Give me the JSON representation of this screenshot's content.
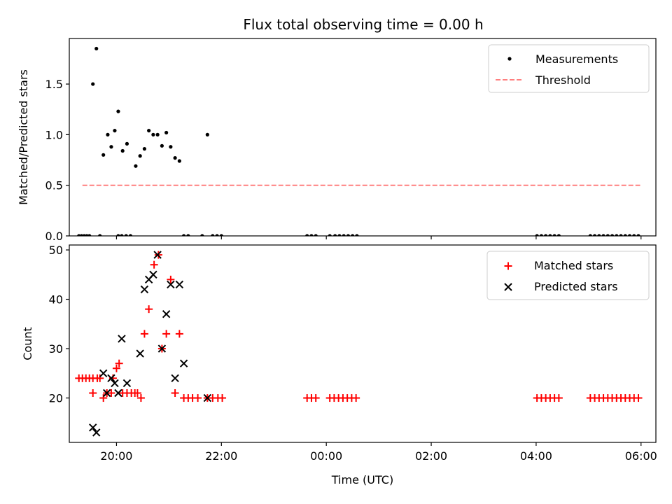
{
  "title": "Flux total observing time = 0.00 h",
  "colors": {
    "measurement": "#000000",
    "threshold": "#ff7f7f",
    "matched": "#ff0000",
    "predicted": "#000000"
  },
  "chart_data": [
    {
      "type": "scatter",
      "ylabel": "Matched/Predicted stars",
      "xlabel": "",
      "ylim": [
        0,
        1.95
      ],
      "yticks": [
        0.0,
        0.5,
        1.0,
        1.5
      ],
      "ytick_labels": [
        "0.0",
        "0.5",
        "1.0",
        "1.5"
      ],
      "xlim": [
        "19:06",
        "06:17"
      ],
      "xticks": [
        "20:00",
        "22:00",
        "00:00",
        "02:00",
        "04:00",
        "06:00"
      ],
      "legend": {
        "position": "top-right",
        "entries": [
          "Measurements",
          "Threshold"
        ]
      },
      "series": [
        {
          "name": "Measurements",
          "marker": "dot",
          "points": [
            [
              "19:17",
              0
            ],
            [
              "19:20",
              0
            ],
            [
              "19:23",
              0
            ],
            [
              "19:26",
              0
            ],
            [
              "19:29",
              0
            ],
            [
              "19:33",
              1.5
            ],
            [
              "19:37",
              1.85
            ],
            [
              "19:41",
              0
            ],
            [
              "19:45",
              0.8
            ],
            [
              "19:50",
              1.0
            ],
            [
              "19:54",
              0.88
            ],
            [
              "19:58",
              1.04
            ],
            [
              "20:02",
              1.23
            ],
            [
              "20:07",
              0.84
            ],
            [
              "20:12",
              0.91
            ],
            [
              "20:02",
              0
            ],
            [
              "20:06",
              0
            ],
            [
              "20:11",
              0
            ],
            [
              "20:16",
              0
            ],
            [
              "20:22",
              0.69
            ],
            [
              "20:27",
              0.79
            ],
            [
              "20:32",
              0.86
            ],
            [
              "20:37",
              1.04
            ],
            [
              "20:42",
              1.0
            ],
            [
              "20:47",
              1.0
            ],
            [
              "20:52",
              0.89
            ],
            [
              "20:57",
              1.02
            ],
            [
              "21:02",
              0.88
            ],
            [
              "21:07",
              0.77
            ],
            [
              "21:12",
              0.74
            ],
            [
              "21:17",
              0
            ],
            [
              "21:22",
              0
            ],
            [
              "21:38",
              0
            ],
            [
              "21:44",
              1.0
            ],
            [
              "21:50",
              0
            ],
            [
              "21:55",
              0
            ],
            [
              "22:00",
              0
            ],
            [
              "23:38",
              0
            ],
            [
              "23:43",
              0
            ],
            [
              "23:48",
              0
            ],
            [
              "00:04",
              0
            ],
            [
              "00:10",
              0
            ],
            [
              "00:15",
              0
            ],
            [
              "00:20",
              0
            ],
            [
              "00:25",
              0
            ],
            [
              "00:30",
              0
            ],
            [
              "00:35",
              0
            ],
            [
              "04:01",
              0
            ],
            [
              "04:06",
              0
            ],
            [
              "04:11",
              0
            ],
            [
              "04:16",
              0
            ],
            [
              "04:21",
              0
            ],
            [
              "04:26",
              0
            ],
            [
              "05:02",
              0
            ],
            [
              "05:07",
              0
            ],
            [
              "05:12",
              0
            ],
            [
              "05:17",
              0
            ],
            [
              "05:22",
              0
            ],
            [
              "05:27",
              0
            ],
            [
              "05:32",
              0
            ],
            [
              "05:37",
              0
            ],
            [
              "05:42",
              0
            ],
            [
              "05:47",
              0
            ],
            [
              "05:52",
              0
            ],
            [
              "05:57",
              0
            ]
          ]
        },
        {
          "name": "Threshold",
          "marker": "dashed-line",
          "points": [
            [
              "19:21",
              0.5
            ],
            [
              "05:59",
              0.5
            ]
          ]
        }
      ]
    },
    {
      "type": "scatter",
      "ylabel": "Count",
      "xlabel": "Time (UTC)",
      "ylim": [
        11,
        51
      ],
      "yticks": [
        20,
        30,
        40,
        50
      ],
      "ytick_labels": [
        "20",
        "30",
        "40",
        "50"
      ],
      "xlim": [
        "19:06",
        "06:17"
      ],
      "xticks": [
        "20:00",
        "22:00",
        "00:00",
        "02:00",
        "04:00",
        "06:00"
      ],
      "xtick_labels": [
        "20:00",
        "22:00",
        "00:00",
        "02:00",
        "04:00",
        "06:00"
      ],
      "legend": {
        "position": "top-right",
        "entries": [
          "Matched stars",
          "Predicted stars"
        ]
      },
      "series": [
        {
          "name": "Matched stars",
          "marker": "plus",
          "points": [
            [
              "19:17",
              24
            ],
            [
              "19:21",
              24
            ],
            [
              "19:25",
              24
            ],
            [
              "19:29",
              24
            ],
            [
              "19:33",
              24
            ],
            [
              "19:33",
              21
            ],
            [
              "19:38",
              24
            ],
            [
              "19:41",
              24
            ],
            [
              "19:45",
              20
            ],
            [
              "19:49",
              21
            ],
            [
              "19:54",
              21
            ],
            [
              "19:56",
              24
            ],
            [
              "20:00",
              26
            ],
            [
              "20:03",
              27
            ],
            [
              "20:07",
              21
            ],
            [
              "20:12",
              21
            ],
            [
              "20:17",
              21
            ],
            [
              "20:21",
              21
            ],
            [
              "20:24",
              21
            ],
            [
              "20:28",
              20
            ],
            [
              "20:32",
              33
            ],
            [
              "20:37",
              38
            ],
            [
              "20:43",
              47
            ],
            [
              "20:48",
              49
            ],
            [
              "20:52",
              30
            ],
            [
              "20:57",
              33
            ],
            [
              "21:02",
              44
            ],
            [
              "21:07",
              21
            ],
            [
              "21:12",
              33
            ],
            [
              "21:17",
              20
            ],
            [
              "21:22",
              20
            ],
            [
              "21:27",
              20
            ],
            [
              "21:33",
              20
            ],
            [
              "21:44",
              20
            ],
            [
              "21:50",
              20
            ],
            [
              "21:56",
              20
            ],
            [
              "22:01",
              20
            ],
            [
              "23:38",
              20
            ],
            [
              "23:43",
              20
            ],
            [
              "23:48",
              20
            ],
            [
              "00:04",
              20
            ],
            [
              "00:09",
              20
            ],
            [
              "00:14",
              20
            ],
            [
              "00:19",
              20
            ],
            [
              "00:24",
              20
            ],
            [
              "00:29",
              20
            ],
            [
              "00:34",
              20
            ],
            [
              "04:01",
              20
            ],
            [
              "04:06",
              20
            ],
            [
              "04:11",
              20
            ],
            [
              "04:16",
              20
            ],
            [
              "04:21",
              20
            ],
            [
              "04:26",
              20
            ],
            [
              "05:02",
              20
            ],
            [
              "05:07",
              20
            ],
            [
              "05:12",
              20
            ],
            [
              "05:17",
              20
            ],
            [
              "05:22",
              20
            ],
            [
              "05:27",
              20
            ],
            [
              "05:32",
              20
            ],
            [
              "05:37",
              20
            ],
            [
              "05:42",
              20
            ],
            [
              "05:47",
              20
            ],
            [
              "05:52",
              20
            ],
            [
              "05:57",
              20
            ]
          ]
        },
        {
          "name": "Predicted stars",
          "marker": "x",
          "points": [
            [
              "19:33",
              14
            ],
            [
              "19:37",
              13
            ],
            [
              "19:45",
              25
            ],
            [
              "19:49",
              21
            ],
            [
              "19:54",
              24
            ],
            [
              "19:58",
              23
            ],
            [
              "20:02",
              21
            ],
            [
              "20:06",
              32
            ],
            [
              "20:12",
              23
            ],
            [
              "20:27",
              29
            ],
            [
              "20:32",
              42
            ],
            [
              "20:37",
              44
            ],
            [
              "20:42",
              45
            ],
            [
              "20:47",
              49
            ],
            [
              "20:52",
              30
            ],
            [
              "20:57",
              37
            ],
            [
              "21:02",
              43
            ],
            [
              "21:07",
              24
            ],
            [
              "21:12",
              43
            ],
            [
              "21:17",
              27
            ],
            [
              "21:44",
              20
            ]
          ]
        }
      ]
    }
  ]
}
